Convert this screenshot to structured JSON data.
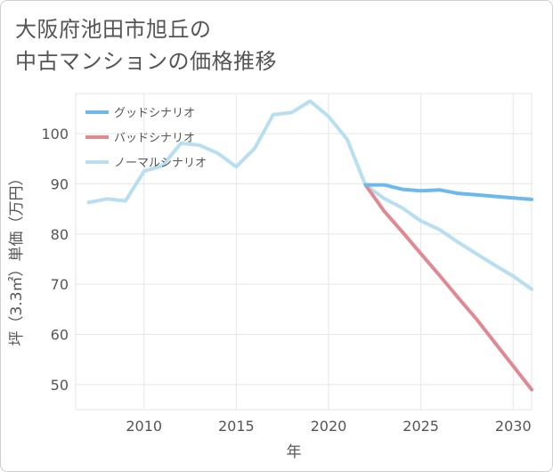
{
  "title": {
    "line1": "大阪府池田市旭丘の",
    "line2": "中古マンションの価格推移"
  },
  "chart_data": {
    "type": "line",
    "xlabel": "年",
    "ylabel": "坪（3.3㎡）単価（万円）",
    "xlim": [
      2006.3,
      2031
    ],
    "ylim": [
      45,
      108
    ],
    "xticks": [
      2010,
      2015,
      2020,
      2025,
      2030
    ],
    "yticks": [
      50,
      60,
      70,
      80,
      90,
      100
    ],
    "grid": true,
    "legend_position": "top-left",
    "series": [
      {
        "name": "グッドシナリオ",
        "color": "#6cb9ec",
        "x": [
          2022,
          2023,
          2024,
          2025,
          2026,
          2027,
          2028,
          2029,
          2030,
          2031
        ],
        "y": [
          89.8,
          89.8,
          88.9,
          88.6,
          88.8,
          88.1,
          87.8,
          87.5,
          87.2,
          86.9
        ]
      },
      {
        "name": "バッドシナリオ",
        "color": "#df8a93",
        "x": [
          2022,
          2023,
          2024,
          2025,
          2026,
          2027,
          2028,
          2029,
          2030,
          2031
        ],
        "y": [
          89.8,
          84.6,
          80.4,
          76.1,
          71.8,
          67.4,
          63.1,
          58.4,
          53.7,
          49.0
        ]
      },
      {
        "name": "ノーマルシナリオ",
        "color": "#b8dfef",
        "x": [
          2007,
          2008,
          2009,
          2010,
          2011,
          2012,
          2013,
          2014,
          2015,
          2016,
          2017,
          2018,
          2019,
          2020,
          2021,
          2022,
          2023,
          2024,
          2025,
          2026,
          2027,
          2028,
          2029,
          2030,
          2031
        ],
        "y": [
          86.3,
          87.0,
          86.6,
          92.5,
          93.6,
          98.1,
          97.7,
          96.1,
          93.4,
          97.1,
          103.8,
          104.2,
          106.5,
          103.4,
          98.9,
          89.8,
          87.1,
          85.2,
          82.6,
          80.9,
          78.4,
          76.1,
          73.8,
          71.6,
          69.0
        ]
      }
    ]
  }
}
